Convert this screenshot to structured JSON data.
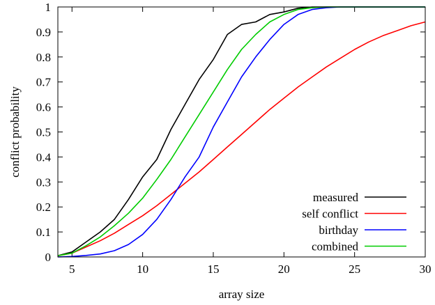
{
  "chart_data": {
    "type": "line",
    "title": "",
    "xlabel": "array size",
    "ylabel": "conflict probability",
    "xlim": [
      4,
      30
    ],
    "ylim": [
      0,
      1
    ],
    "x_ticks": [
      5,
      10,
      15,
      20,
      25,
      30
    ],
    "y_ticks": [
      0,
      0.1,
      0.2,
      0.3,
      0.4,
      0.5,
      0.6,
      0.7,
      0.8,
      0.9,
      1
    ],
    "grid": false,
    "legend_position": "bottom-right",
    "series": [
      {
        "name": "measured",
        "color": "#000000",
        "x": [
          4,
          5,
          6,
          7,
          8,
          9,
          10,
          11,
          12,
          13,
          14,
          15,
          16,
          17,
          18,
          19,
          20,
          21,
          22,
          23,
          24,
          25,
          26,
          27,
          28,
          29,
          30
        ],
        "y": [
          0.005,
          0.02,
          0.06,
          0.1,
          0.15,
          0.23,
          0.32,
          0.39,
          0.51,
          0.61,
          0.71,
          0.79,
          0.89,
          0.93,
          0.94,
          0.97,
          0.98,
          0.995,
          1.0,
          1.0,
          1.0,
          1.0,
          1.0,
          1.0,
          1.0,
          1.0,
          1.0
        ]
      },
      {
        "name": "self conflict",
        "color": "#ff0000",
        "x": [
          4,
          5,
          6,
          7,
          8,
          9,
          10,
          11,
          12,
          13,
          14,
          15,
          16,
          17,
          18,
          19,
          20,
          21,
          22,
          23,
          24,
          25,
          26,
          27,
          28,
          29,
          30
        ],
        "y": [
          0.005,
          0.015,
          0.04,
          0.065,
          0.095,
          0.13,
          0.165,
          0.205,
          0.25,
          0.295,
          0.34,
          0.39,
          0.44,
          0.49,
          0.54,
          0.59,
          0.635,
          0.68,
          0.72,
          0.76,
          0.795,
          0.83,
          0.86,
          0.885,
          0.905,
          0.925,
          0.94
        ]
      },
      {
        "name": "birthday",
        "color": "#0000ff",
        "x": [
          4,
          5,
          6,
          7,
          8,
          9,
          10,
          11,
          12,
          13,
          14,
          15,
          16,
          17,
          18,
          19,
          20,
          21,
          22,
          23,
          24,
          25,
          26,
          27,
          28,
          29,
          30
        ],
        "y": [
          0.0,
          0.002,
          0.006,
          0.012,
          0.025,
          0.05,
          0.09,
          0.15,
          0.23,
          0.32,
          0.4,
          0.52,
          0.62,
          0.72,
          0.8,
          0.87,
          0.93,
          0.97,
          0.99,
          0.997,
          1.0,
          1.0,
          1.0,
          1.0,
          1.0,
          1.0,
          1.0
        ]
      },
      {
        "name": "combined",
        "color": "#00cc00",
        "x": [
          4,
          5,
          6,
          7,
          8,
          9,
          10,
          11,
          12,
          13,
          14,
          15,
          16,
          17,
          18,
          19,
          20,
          21,
          22,
          23,
          24,
          25,
          26,
          27,
          28,
          29,
          30
        ],
        "y": [
          0.005,
          0.015,
          0.045,
          0.08,
          0.125,
          0.175,
          0.235,
          0.31,
          0.39,
          0.48,
          0.57,
          0.66,
          0.75,
          0.83,
          0.89,
          0.94,
          0.97,
          0.99,
          0.997,
          1.0,
          1.0,
          1.0,
          1.0,
          1.0,
          1.0,
          1.0,
          1.0
        ]
      }
    ]
  }
}
